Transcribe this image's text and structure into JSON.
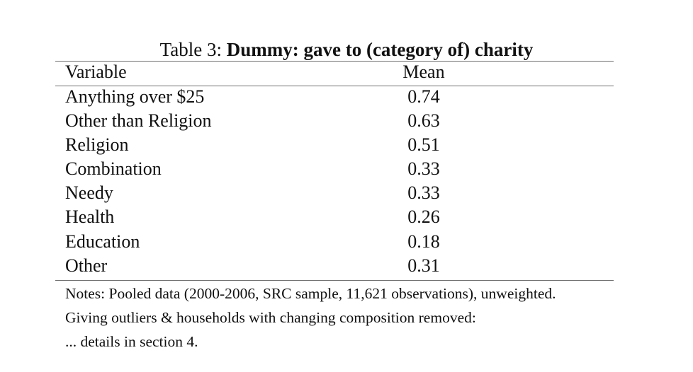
{
  "table": {
    "caption_prefix": "Table 3:",
    "caption_title": "Dummy: gave to (category of) charity",
    "columns": {
      "variable": "Variable",
      "mean": "Mean"
    },
    "rows": [
      {
        "variable": "Anything over $25",
        "mean": "0.74"
      },
      {
        "variable": "Other than Religion",
        "mean": "0.63"
      },
      {
        "variable": "Religion",
        "mean": "0.51"
      },
      {
        "variable": "Combination",
        "mean": "0.33"
      },
      {
        "variable": "Needy",
        "mean": "0.33"
      },
      {
        "variable": "Health",
        "mean": "0.26"
      },
      {
        "variable": "Education",
        "mean": "0.18"
      },
      {
        "variable": "Other",
        "mean": "0.31"
      }
    ],
    "notes": [
      "Notes: Pooled data (2000-2006, SRC sample, 11,621 observations), unweighted.",
      "Giving outliers & households with changing composition removed:",
      "... details in section 4."
    ]
  }
}
